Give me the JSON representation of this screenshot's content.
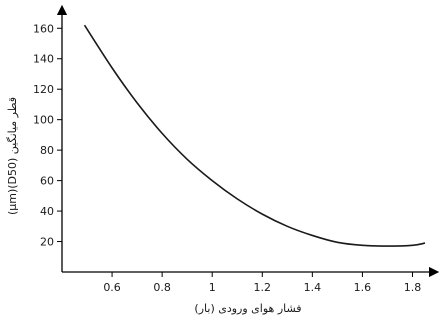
{
  "chart_data": {
    "type": "line",
    "title": "",
    "xlabel": "فشار هوای ورودی (بار)",
    "ylabel": "(µm)(D50) قطر میانگین",
    "xlim": [
      0.4,
      1.87
    ],
    "ylim": [
      0,
      172
    ],
    "x_ticks": [
      0.6,
      0.8,
      1,
      1.2,
      1.4,
      1.6,
      1.8
    ],
    "x_tick_labels": [
      "0.6",
      "0.8",
      "1",
      "1.2",
      "1.4",
      "1.6",
      "1.8"
    ],
    "y_ticks": [
      20,
      40,
      60,
      80,
      100,
      120,
      140,
      160
    ],
    "y_tick_labels": [
      "20",
      "40",
      "60",
      "80",
      "100",
      "120",
      "140",
      "160"
    ],
    "grid": false,
    "series": [
      {
        "x": [
          0.49,
          0.6,
          0.7,
          0.8,
          0.9,
          1.0,
          1.1,
          1.2,
          1.3,
          1.4,
          1.5,
          1.6,
          1.7,
          1.8,
          1.85
        ],
        "y": [
          162,
          134,
          111,
          91,
          74,
          60,
          48,
          38,
          30,
          24,
          19.5,
          17.5,
          17,
          17.5,
          19
        ]
      }
    ]
  }
}
